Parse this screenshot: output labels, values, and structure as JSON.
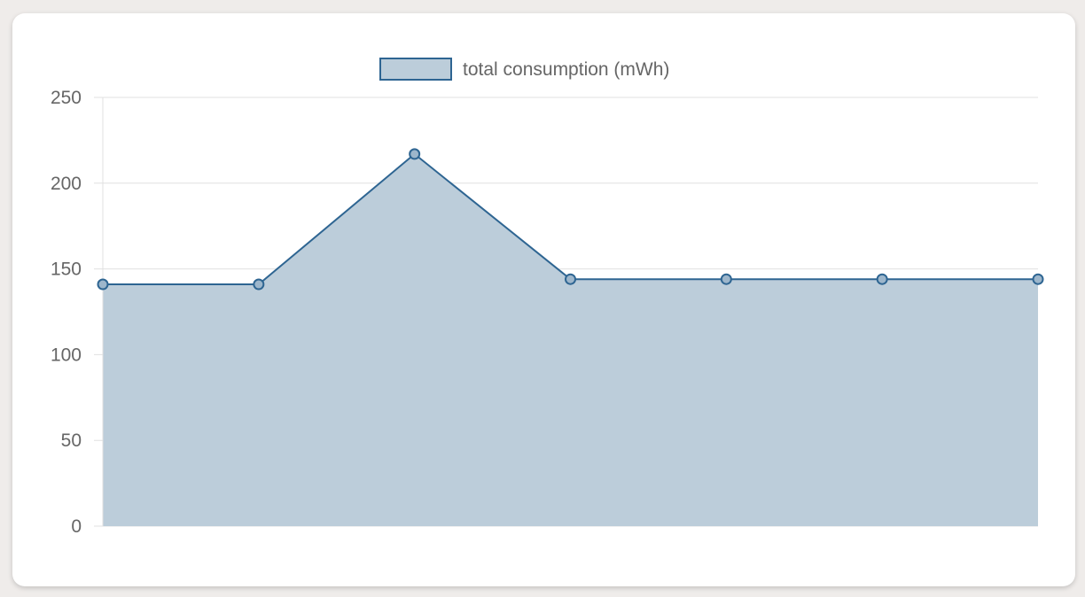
{
  "chart_data": {
    "type": "area",
    "categories": [
      "",
      "",
      "",
      "",
      "",
      "",
      ""
    ],
    "series": [
      {
        "name": "total consumption (mWh)",
        "values": [
          141,
          141,
          217,
          144,
          144,
          144,
          144
        ]
      }
    ],
    "ylim": [
      0,
      250
    ],
    "yticks": [
      "0",
      "50",
      "100",
      "150",
      "200",
      "250"
    ],
    "grid": true,
    "legend_position": "top-center",
    "colors": {
      "line": "#2e6592",
      "fill": "#bccdda",
      "grid": "#e0e0e0",
      "text": "#666666"
    }
  }
}
